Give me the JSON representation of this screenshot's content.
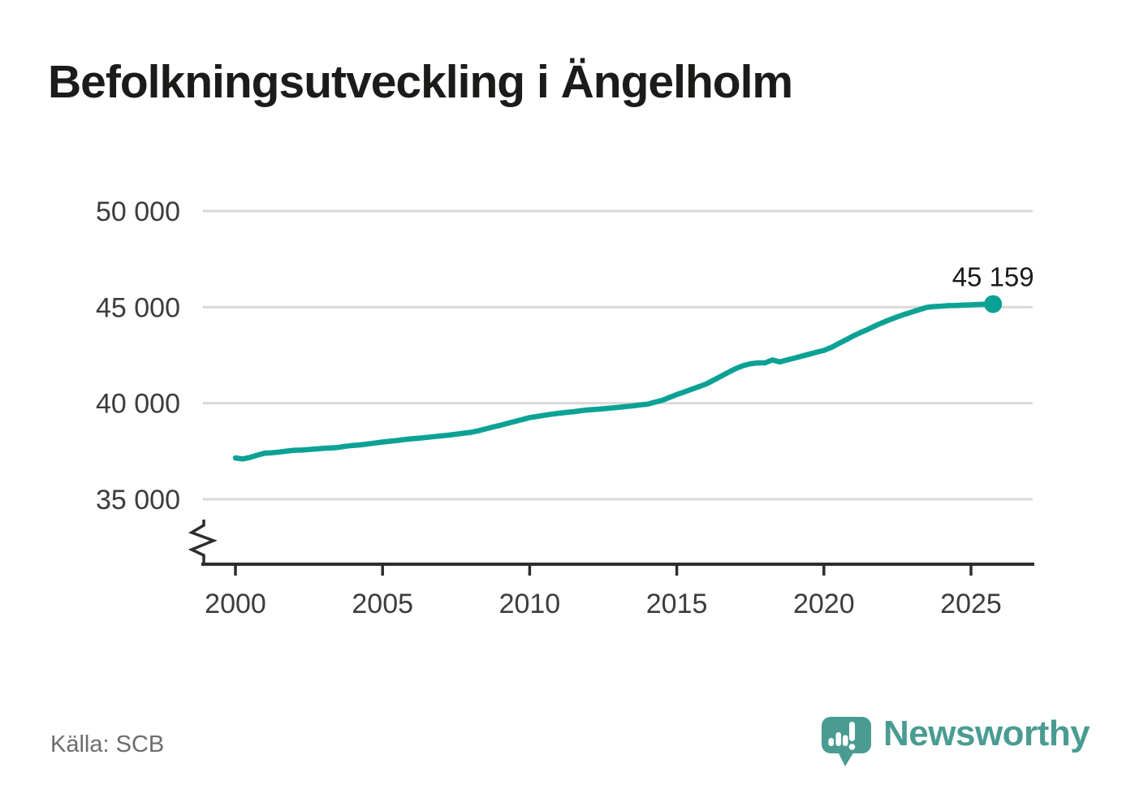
{
  "header": {
    "title": "Befolkningsutveckling i Ängelholm"
  },
  "chart_data": {
    "type": "line",
    "title": "Befolkningsutveckling i Ängelholm",
    "xlabel": "",
    "ylabel": "",
    "grid": "horizontal",
    "legend": "none",
    "axis_break_bottom_left": true,
    "ylim": [
      35000,
      50000
    ],
    "xlim": [
      1999.3,
      2027.1
    ],
    "x_ticks": [
      2000,
      2005,
      2010,
      2015,
      2020,
      2025
    ],
    "y_ticks": [
      {
        "value": 50000,
        "label": "50 000"
      },
      {
        "value": 45000,
        "label": "45 000"
      },
      {
        "value": 40000,
        "label": "40 000"
      },
      {
        "value": 35000,
        "label": "35 000"
      }
    ],
    "end_annotation": {
      "label": "45 159",
      "value": 45159,
      "x": 2025.75
    },
    "series": [
      {
        "name": "Befolkning",
        "points": [
          [
            2000.0,
            37150
          ],
          [
            2000.25,
            37100
          ],
          [
            2000.5,
            37180
          ],
          [
            2000.75,
            37300
          ],
          [
            2001.0,
            37400
          ],
          [
            2001.25,
            37420
          ],
          [
            2001.5,
            37460
          ],
          [
            2001.75,
            37510
          ],
          [
            2002.0,
            37550
          ],
          [
            2002.25,
            37560
          ],
          [
            2002.5,
            37590
          ],
          [
            2002.75,
            37620
          ],
          [
            2003.0,
            37650
          ],
          [
            2003.25,
            37670
          ],
          [
            2003.5,
            37700
          ],
          [
            2003.75,
            37760
          ],
          [
            2004.0,
            37800
          ],
          [
            2004.25,
            37830
          ],
          [
            2004.5,
            37880
          ],
          [
            2004.75,
            37930
          ],
          [
            2005.0,
            37980
          ],
          [
            2005.25,
            38020
          ],
          [
            2005.5,
            38060
          ],
          [
            2005.75,
            38110
          ],
          [
            2006.0,
            38150
          ],
          [
            2006.25,
            38180
          ],
          [
            2006.5,
            38220
          ],
          [
            2006.75,
            38260
          ],
          [
            2007.0,
            38300
          ],
          [
            2007.25,
            38340
          ],
          [
            2007.5,
            38390
          ],
          [
            2007.75,
            38440
          ],
          [
            2008.0,
            38480
          ],
          [
            2008.25,
            38560
          ],
          [
            2008.5,
            38660
          ],
          [
            2008.75,
            38760
          ],
          [
            2009.0,
            38850
          ],
          [
            2009.25,
            38950
          ],
          [
            2009.5,
            39050
          ],
          [
            2009.75,
            39150
          ],
          [
            2010.0,
            39250
          ],
          [
            2010.25,
            39310
          ],
          [
            2010.5,
            39370
          ],
          [
            2010.75,
            39430
          ],
          [
            2011.0,
            39480
          ],
          [
            2011.25,
            39520
          ],
          [
            2011.5,
            39560
          ],
          [
            2011.75,
            39610
          ],
          [
            2012.0,
            39650
          ],
          [
            2012.25,
            39680
          ],
          [
            2012.5,
            39710
          ],
          [
            2012.75,
            39750
          ],
          [
            2013.0,
            39780
          ],
          [
            2013.25,
            39820
          ],
          [
            2013.5,
            39860
          ],
          [
            2013.75,
            39910
          ],
          [
            2014.0,
            39950
          ],
          [
            2014.25,
            40050
          ],
          [
            2014.5,
            40150
          ],
          [
            2014.75,
            40300
          ],
          [
            2015.0,
            40450
          ],
          [
            2015.25,
            40580
          ],
          [
            2015.5,
            40720
          ],
          [
            2015.75,
            40860
          ],
          [
            2016.0,
            41000
          ],
          [
            2016.25,
            41200
          ],
          [
            2016.5,
            41400
          ],
          [
            2016.75,
            41600
          ],
          [
            2017.0,
            41800
          ],
          [
            2017.25,
            41950
          ],
          [
            2017.5,
            42050
          ],
          [
            2017.75,
            42100
          ],
          [
            2018.0,
            42100
          ],
          [
            2018.25,
            42250
          ],
          [
            2018.5,
            42150
          ],
          [
            2018.75,
            42250
          ],
          [
            2019.0,
            42350
          ],
          [
            2019.25,
            42450
          ],
          [
            2019.5,
            42550
          ],
          [
            2019.75,
            42650
          ],
          [
            2020.0,
            42750
          ],
          [
            2020.25,
            42900
          ],
          [
            2020.5,
            43100
          ],
          [
            2020.75,
            43300
          ],
          [
            2021.0,
            43500
          ],
          [
            2021.25,
            43680
          ],
          [
            2021.5,
            43850
          ],
          [
            2021.75,
            44030
          ],
          [
            2022.0,
            44200
          ],
          [
            2022.25,
            44350
          ],
          [
            2022.5,
            44500
          ],
          [
            2022.75,
            44630
          ],
          [
            2023.0,
            44750
          ],
          [
            2023.25,
            44870
          ],
          [
            2023.5,
            44990
          ],
          [
            2023.75,
            45030
          ],
          [
            2024.0,
            45050
          ],
          [
            2024.25,
            45080
          ],
          [
            2024.5,
            45090
          ],
          [
            2024.75,
            45110
          ],
          [
            2025.0,
            45120
          ],
          [
            2025.25,
            45140
          ],
          [
            2025.5,
            45150
          ],
          [
            2025.75,
            45159
          ]
        ]
      }
    ]
  },
  "footer": {
    "source": "Källa: SCB",
    "brand": "Newsworthy"
  },
  "icons": {
    "brand_logo": "newsworthy-speech-bubble-barchart-icon"
  },
  "colors": {
    "line": "#0ba295",
    "marker": "#0ba295",
    "grid": "#d9d9d9",
    "axis": "#2d2d2d",
    "tick_text": "#3c3c3c",
    "text_primary": "#1b1b19",
    "annotation_text": "#1b1b19",
    "source": "#6d6d6d",
    "brand": "#4a9c92"
  }
}
